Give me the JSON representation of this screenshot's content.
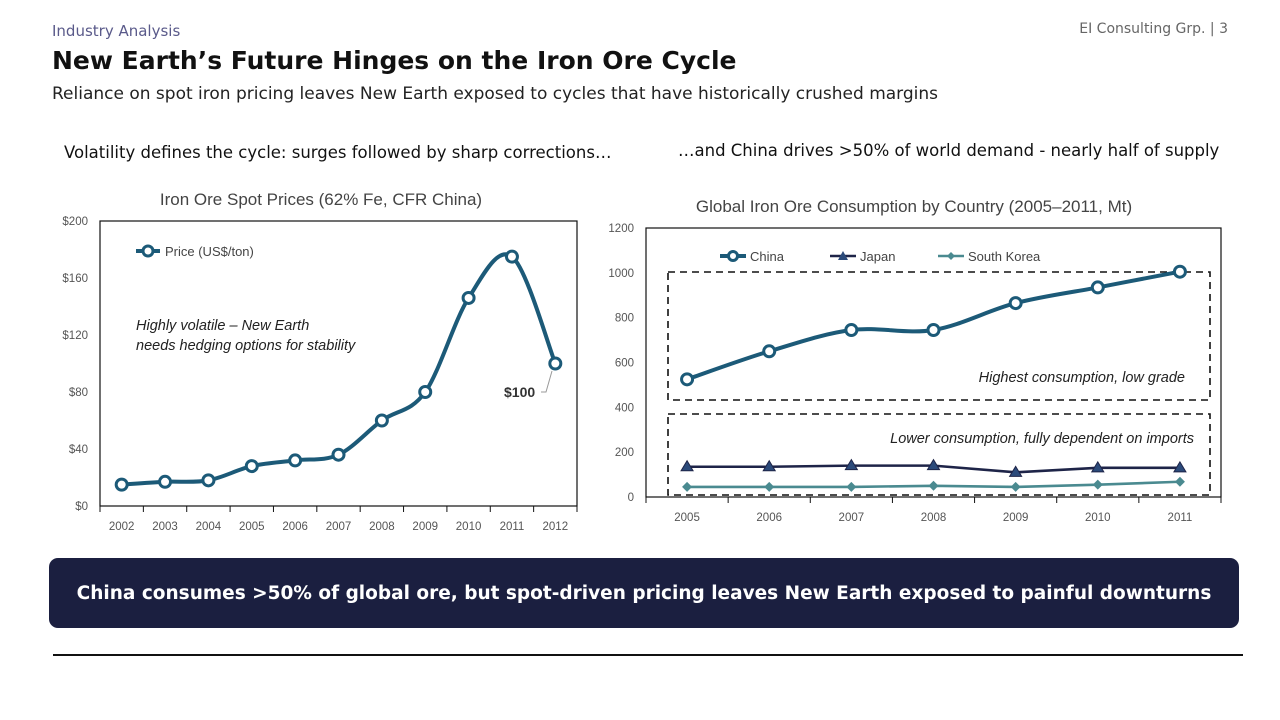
{
  "header": {
    "section": "Industry Analysis",
    "firm": "EI Consulting Grp. | 3",
    "title": "New Earth’s Future Hinges on the Iron Ore Cycle",
    "subtitle": "Reliance on spot iron pricing leaves New Earth exposed to cycles that have historically crushed margins"
  },
  "left_heading": "Volatility defines the cycle: surges followed by sharp corrections…",
  "right_heading": "…and China drives >50% of world demand - nearly half of supply",
  "banner": "China consumes >50% of global ore, but spot-driven pricing leaves New Earth exposed to painful downturns",
  "colors": {
    "china": "#1c5a78",
    "japan": "#1e2448",
    "korea": "#4a8a90",
    "banner": "#1b1f40"
  },
  "chart_data": [
    {
      "type": "line",
      "title": "Iron Ore Spot Prices (62% Fe, CFR China)",
      "categories": [
        "2002",
        "2003",
        "2004",
        "2005",
        "2006",
        "2007",
        "2008",
        "2009",
        "2010",
        "2011",
        "2012"
      ],
      "series": [
        {
          "name": "Price (US$/ton)",
          "values": [
            15,
            17,
            18,
            28,
            32,
            36,
            60,
            80,
            146,
            175,
            100
          ]
        }
      ],
      "ylim": [
        0,
        200
      ],
      "yticks": [
        "$0",
        "$40",
        "$80",
        "$120",
        "$160",
        "$200"
      ],
      "ytick_values": [
        0,
        40,
        80,
        120,
        160,
        200
      ],
      "annotations": [
        "Highly volatile – New Earth",
        "needs hedging options for stability",
        "$100"
      ],
      "legend": "top-left",
      "grid": false
    },
    {
      "type": "line",
      "title": "Global Iron Ore Consumption by Country (2005–2011, Mt)",
      "categories": [
        "2005",
        "2006",
        "2007",
        "2008",
        "2009",
        "2010",
        "2011"
      ],
      "series": [
        {
          "name": "China",
          "values": [
            525,
            650,
            745,
            745,
            865,
            935,
            1005
          ]
        },
        {
          "name": "Japan",
          "values": [
            135,
            135,
            140,
            140,
            110,
            130,
            130
          ]
        },
        {
          "name": "South Korea",
          "values": [
            45,
            45,
            45,
            50,
            45,
            55,
            68
          ]
        }
      ],
      "ylim": [
        0,
        1200
      ],
      "yticks": [
        "0",
        "200",
        "400",
        "600",
        "800",
        "1000",
        "1200"
      ],
      "ytick_values": [
        0,
        200,
        400,
        600,
        800,
        1000,
        1200
      ],
      "annotations": [
        "Highest consumption, low grade",
        "Lower consumption, fully dependent on imports"
      ],
      "legend": "top",
      "grid": false
    }
  ]
}
